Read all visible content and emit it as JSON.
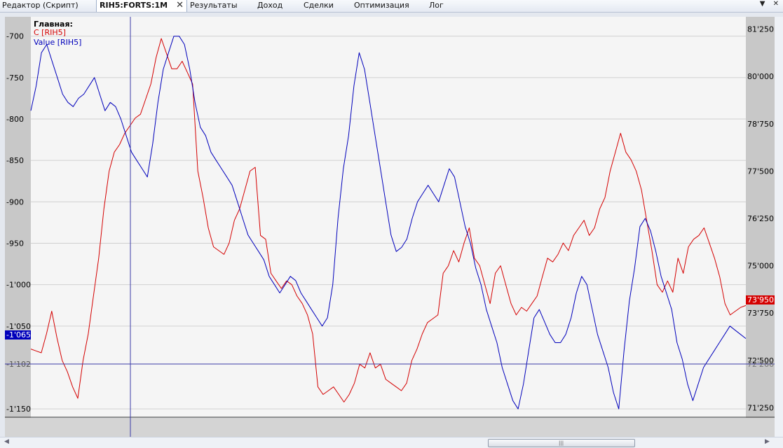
{
  "tabs": [
    {
      "label": "Редактор (Скрипт)",
      "active": false
    },
    {
      "label": "RIH5:FORTS:1M",
      "active": true
    },
    {
      "label": "Результаты",
      "active": false
    },
    {
      "label": "Доход",
      "active": false
    },
    {
      "label": "Сделки",
      "active": false
    },
    {
      "label": "Оптимизация",
      "active": false
    },
    {
      "label": "Лог",
      "active": false
    }
  ],
  "icons": [
    "close-icon",
    "dropdown-arrow-icon",
    "pin-icon",
    "scroll-left-icon",
    "scroll-right-icon",
    "scroll-grip-icon"
  ],
  "legend": {
    "title": "Главная:",
    "series1": "C [RIH5]",
    "series2": "Value [RIH5]"
  },
  "chart_data": {
    "type": "line",
    "left_axis": {
      "ticks": [
        "-700",
        "-750",
        "-800",
        "-850",
        "-900",
        "-950",
        "-1'000",
        "-1'050",
        "-1'150"
      ],
      "range": [
        -1160,
        -680
      ]
    },
    "right_axis": {
      "ticks": [
        "81'250",
        "80'000",
        "78'750",
        "77'500",
        "76'250",
        "75'000",
        "73'750",
        "72'500",
        "71'250"
      ],
      "range": [
        71000,
        81500
      ]
    },
    "crosshair_left_label": "-1'102",
    "crosshair_right_label": "72'266",
    "last_value_left": "-1'065",
    "last_value_right": "73'950",
    "series": [
      {
        "name": "C [RIH5]",
        "axis": "right",
        "color": "#d40000",
        "y": [
          72800,
          72750,
          72700,
          73200,
          73800,
          73100,
          72500,
          72200,
          71800,
          71500,
          72500,
          73200,
          74200,
          75200,
          76500,
          77500,
          78000,
          78200,
          78500,
          78700,
          78900,
          79000,
          79400,
          79800,
          80500,
          81000,
          80600,
          80200,
          80200,
          80400,
          80100,
          79800,
          77500,
          76800,
          76000,
          75500,
          75400,
          75300,
          75600,
          76200,
          76500,
          77000,
          77500,
          77600,
          75800,
          75700,
          74800,
          74600,
          74400,
          74600,
          74500,
          74200,
          74000,
          73700,
          73200,
          71800,
          71600,
          71700,
          71800,
          71600,
          71400,
          71600,
          71900,
          72400,
          72300,
          72700,
          72300,
          72400,
          72000,
          71900,
          71800,
          71700,
          71900,
          72500,
          72800,
          73200,
          73500,
          73600,
          73700,
          74800,
          75000,
          75400,
          75100,
          75600,
          76000,
          75200,
          75000,
          74500,
          74000,
          74800,
          75000,
          74500,
          74000,
          73700,
          73900,
          73800,
          74000,
          74200,
          74700,
          75200,
          75100,
          75300,
          75600,
          75400,
          75800,
          76000,
          76200,
          75800,
          76000,
          76500,
          76800,
          77500,
          78000,
          78500,
          78000,
          77800,
          77500,
          77000,
          76200,
          75400,
          74500,
          74300,
          74600,
          74300,
          75200,
          74800,
          75500,
          75700,
          75800,
          76000,
          75600,
          75200,
          74700,
          74000,
          73700,
          73800,
          73900,
          73950
        ]
      },
      {
        "name": "Value [RIH5]",
        "axis": "left",
        "color": "#0000bb",
        "y": [
          -790,
          -760,
          -720,
          -710,
          -730,
          -750,
          -770,
          -780,
          -785,
          -775,
          -770,
          -760,
          -750,
          -770,
          -790,
          -780,
          -785,
          -800,
          -820,
          -840,
          -850,
          -860,
          -870,
          -830,
          -780,
          -740,
          -720,
          -700,
          -700,
          -710,
          -740,
          -780,
          -810,
          -820,
          -840,
          -850,
          -860,
          -870,
          -880,
          -900,
          -920,
          -940,
          -950,
          -960,
          -970,
          -990,
          -1000,
          -1010,
          -1000,
          -990,
          -995,
          -1010,
          -1020,
          -1030,
          -1040,
          -1050,
          -1040,
          -1000,
          -920,
          -860,
          -820,
          -760,
          -720,
          -740,
          -780,
          -820,
          -860,
          -900,
          -940,
          -960,
          -955,
          -945,
          -920,
          -900,
          -890,
          -880,
          -890,
          -900,
          -880,
          -860,
          -870,
          -900,
          -930,
          -950,
          -980,
          -1000,
          -1030,
          -1050,
          -1070,
          -1100,
          -1120,
          -1140,
          -1150,
          -1120,
          -1080,
          -1040,
          -1030,
          -1045,
          -1060,
          -1070,
          -1070,
          -1060,
          -1040,
          -1010,
          -990,
          -1000,
          -1030,
          -1060,
          -1080,
          -1100,
          -1130,
          -1150,
          -1080,
          -1020,
          -980,
          -930,
          -920,
          -935,
          -960,
          -990,
          -1010,
          -1030,
          -1070,
          -1090,
          -1120,
          -1140,
          -1120,
          -1100,
          -1090,
          -1080,
          -1070,
          -1060,
          -1050,
          -1055,
          -1060,
          -1065
        ]
      }
    ],
    "grid": true
  }
}
